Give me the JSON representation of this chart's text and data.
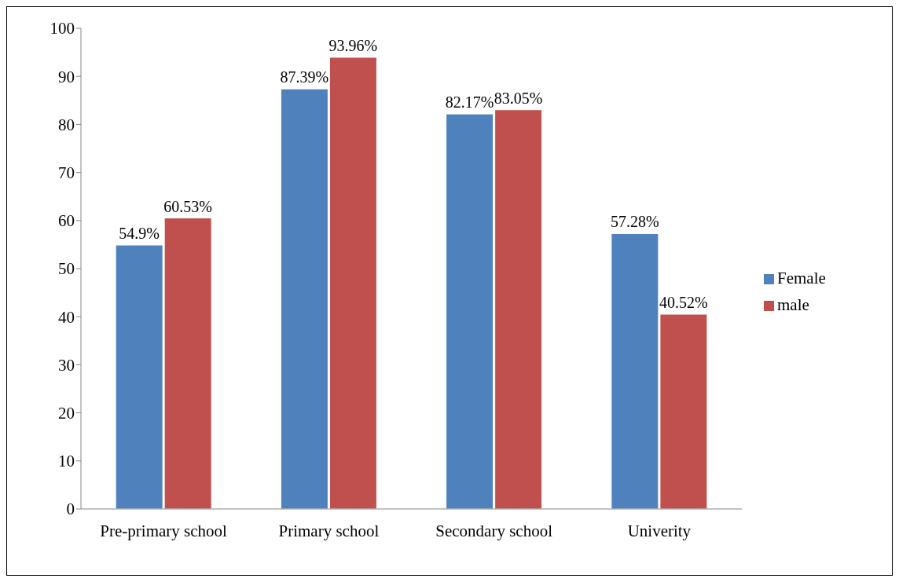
{
  "chart_data": {
    "type": "bar",
    "categories": [
      "Pre-primary school",
      "Primary school",
      "Secondary school",
      "Univerity"
    ],
    "series": [
      {
        "name": "Female",
        "color": "#4f81bd",
        "values": [
          54.9,
          87.39,
          82.17,
          57.28
        ],
        "value_labels": [
          "54.9%",
          "87.39%",
          "82.17%",
          "57.28%"
        ]
      },
      {
        "name": "male",
        "color": "#c0504d",
        "values": [
          60.53,
          93.96,
          83.05,
          40.52
        ],
        "value_labels": [
          "60.53%",
          "93.96%",
          "83.05%",
          "40.52%"
        ]
      }
    ],
    "ylim": [
      0,
      100
    ],
    "yticks": [
      0,
      10,
      20,
      30,
      40,
      50,
      60,
      70,
      80,
      90,
      100
    ],
    "grid": false,
    "legend": "right"
  }
}
